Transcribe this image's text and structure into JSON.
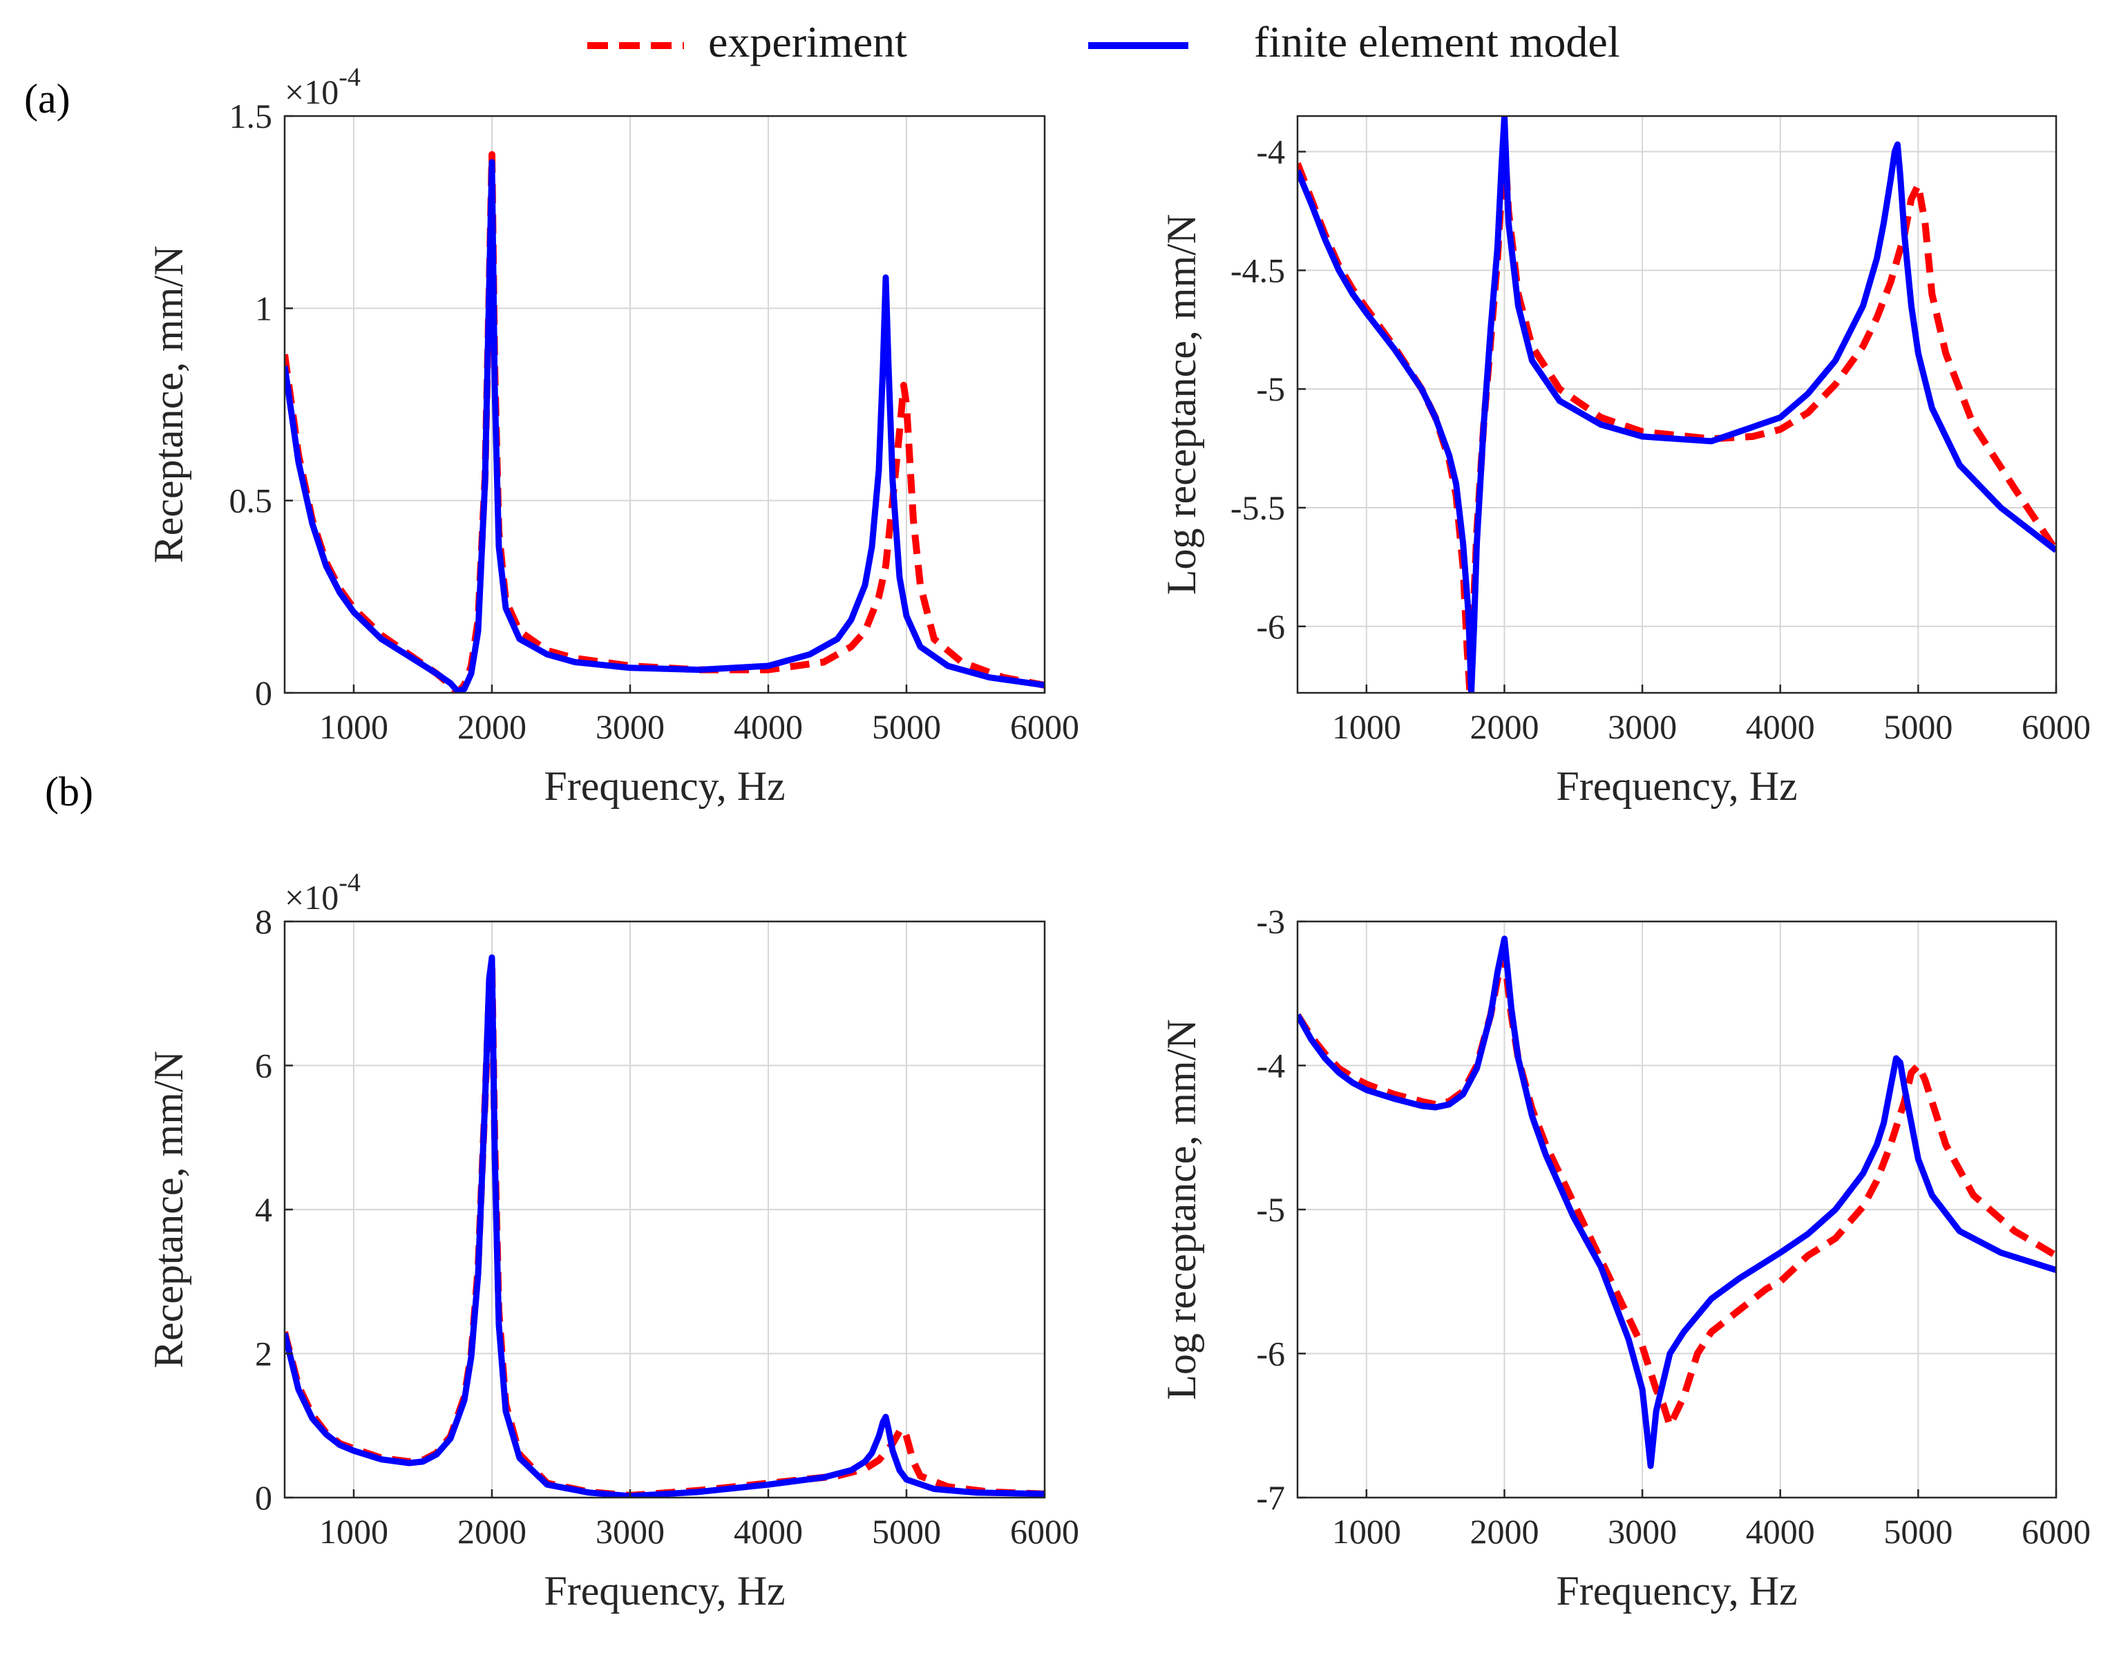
{
  "legend": {
    "items": [
      {
        "label": "experiment",
        "color": "#ff0000",
        "style": "dashed"
      },
      {
        "label": "finite element model",
        "color": "#0000ff",
        "style": "solid"
      }
    ],
    "placement": "top-center"
  },
  "panel_labels": [
    "(a)",
    "(b)"
  ],
  "chart_data": [
    {
      "id": "a_linear",
      "type": "line",
      "xlabel": "Frequency, Hz",
      "ylabel": "Receptance, mm/N",
      "multiplier": "×10",
      "multiplier_exp": "-4",
      "xlim": [
        500,
        6000
      ],
      "ylim": [
        0,
        1.5
      ],
      "xticks": [
        1000,
        2000,
        3000,
        4000,
        5000,
        6000
      ],
      "xticklabels": [
        "1000",
        "2000",
        "3000",
        "4000",
        "5000",
        "6000"
      ],
      "yticks": [
        0,
        0.5,
        1,
        1.5
      ],
      "yticklabels": [
        "0",
        "0.5",
        "1",
        "1.5"
      ],
      "grid": true,
      "series": [
        {
          "name": "experiment",
          "color": "#ff0000",
          "dashed": true,
          "x": [
            500,
            600,
            700,
            800,
            900,
            1000,
            1200,
            1400,
            1600,
            1700,
            1750,
            1800,
            1850,
            1900,
            1950,
            1980,
            2000,
            2020,
            2050,
            2100,
            2200,
            2400,
            2600,
            3000,
            3500,
            4000,
            4400,
            4600,
            4700,
            4800,
            4850,
            4900,
            4950,
            4980,
            5000,
            5050,
            5100,
            5200,
            5400,
            5700,
            6000
          ],
          "y": [
            0.88,
            0.62,
            0.45,
            0.34,
            0.27,
            0.22,
            0.15,
            0.1,
            0.05,
            0.02,
            0.0,
            0.02,
            0.07,
            0.19,
            0.56,
            1.05,
            1.4,
            0.85,
            0.42,
            0.24,
            0.16,
            0.11,
            0.09,
            0.07,
            0.06,
            0.06,
            0.08,
            0.12,
            0.16,
            0.25,
            0.33,
            0.5,
            0.68,
            0.8,
            0.75,
            0.45,
            0.28,
            0.14,
            0.08,
            0.04,
            0.02
          ]
        },
        {
          "name": "finite element model",
          "color": "#0000ff",
          "dashed": false,
          "x": [
            500,
            600,
            700,
            800,
            900,
            1000,
            1200,
            1400,
            1600,
            1700,
            1750,
            1800,
            1850,
            1900,
            1950,
            1980,
            2000,
            2020,
            2050,
            2100,
            2200,
            2400,
            2600,
            3000,
            3500,
            4000,
            4300,
            4500,
            4600,
            4700,
            4750,
            4800,
            4830,
            4850,
            4870,
            4900,
            4950,
            5000,
            5100,
            5300,
            5600,
            6000
          ],
          "y": [
            0.85,
            0.6,
            0.44,
            0.33,
            0.26,
            0.21,
            0.14,
            0.095,
            0.05,
            0.025,
            0.005,
            0.01,
            0.05,
            0.16,
            0.55,
            1.05,
            1.38,
            0.8,
            0.38,
            0.22,
            0.14,
            0.1,
            0.08,
            0.065,
            0.06,
            0.07,
            0.1,
            0.14,
            0.19,
            0.28,
            0.38,
            0.58,
            0.85,
            1.08,
            0.85,
            0.55,
            0.3,
            0.2,
            0.12,
            0.07,
            0.04,
            0.02
          ]
        }
      ]
    },
    {
      "id": "a_log",
      "type": "line",
      "xlabel": "Frequency, Hz",
      "ylabel": "Log receptance, mm/N",
      "xlim": [
        500,
        6000
      ],
      "ylim": [
        -6.28,
        -3.85
      ],
      "xticks": [
        1000,
        2000,
        3000,
        4000,
        5000,
        6000
      ],
      "xticklabels": [
        "1000",
        "2000",
        "3000",
        "4000",
        "5000",
        "6000"
      ],
      "yticks": [
        -6,
        -5.5,
        -5,
        -4.5,
        -4
      ],
      "yticklabels": [
        "-6",
        "-5.5",
        "-5",
        "-4.5",
        "-4"
      ],
      "grid": true,
      "series": [
        {
          "name": "experiment",
          "color": "#ff0000",
          "dashed": true,
          "x": [
            500,
            600,
            700,
            800,
            900,
            1000,
            1200,
            1400,
            1500,
            1600,
            1650,
            1700,
            1730,
            1750,
            1770,
            1800,
            1850,
            1900,
            1950,
            1980,
            2000,
            2030,
            2100,
            2200,
            2400,
            2700,
            3000,
            3500,
            3800,
            4000,
            4200,
            4400,
            4600,
            4700,
            4800,
            4900,
            4950,
            5000,
            5050,
            5100,
            5200,
            5400,
            5700,
            6000
          ],
          "y": [
            -4.05,
            -4.2,
            -4.35,
            -4.48,
            -4.58,
            -4.66,
            -4.82,
            -5.0,
            -5.12,
            -5.3,
            -5.45,
            -5.75,
            -6.1,
            -6.28,
            -6.0,
            -5.6,
            -5.15,
            -4.8,
            -4.45,
            -4.15,
            -3.95,
            -4.25,
            -4.6,
            -4.82,
            -5.0,
            -5.12,
            -5.18,
            -5.21,
            -5.2,
            -5.17,
            -5.1,
            -4.98,
            -4.82,
            -4.7,
            -4.55,
            -4.35,
            -4.2,
            -4.14,
            -4.3,
            -4.6,
            -4.85,
            -5.15,
            -5.42,
            -5.68
          ]
        },
        {
          "name": "finite element model",
          "color": "#0000ff",
          "dashed": false,
          "x": [
            500,
            600,
            700,
            800,
            900,
            1000,
            1200,
            1400,
            1500,
            1600,
            1650,
            1700,
            1740,
            1760,
            1780,
            1800,
            1850,
            1900,
            1950,
            1980,
            2000,
            2030,
            2100,
            2200,
            2400,
            2700,
            3000,
            3500,
            4000,
            4200,
            4400,
            4600,
            4700,
            4750,
            4800,
            4830,
            4850,
            4870,
            4900,
            4950,
            5000,
            5100,
            5300,
            5600,
            6000
          ],
          "y": [
            -4.08,
            -4.22,
            -4.37,
            -4.5,
            -4.6,
            -4.68,
            -4.83,
            -5.0,
            -5.12,
            -5.28,
            -5.4,
            -5.65,
            -5.95,
            -6.28,
            -6.0,
            -5.65,
            -5.15,
            -4.75,
            -4.4,
            -4.05,
            -3.85,
            -4.3,
            -4.65,
            -4.88,
            -5.05,
            -5.15,
            -5.2,
            -5.22,
            -5.12,
            -5.02,
            -4.88,
            -4.65,
            -4.45,
            -4.3,
            -4.12,
            -4.0,
            -3.97,
            -4.1,
            -4.35,
            -4.65,
            -4.85,
            -5.08,
            -5.32,
            -5.5,
            -5.68
          ]
        }
      ]
    },
    {
      "id": "b_linear",
      "type": "line",
      "xlabel": "Frequency, Hz",
      "ylabel": "Receptance, mm/N",
      "multiplier": "×10",
      "multiplier_exp": "-4",
      "xlim": [
        500,
        6000
      ],
      "ylim": [
        0,
        8
      ],
      "xticks": [
        1000,
        2000,
        3000,
        4000,
        5000,
        6000
      ],
      "xticklabels": [
        "1000",
        "2000",
        "3000",
        "4000",
        "5000",
        "6000"
      ],
      "yticks": [
        0,
        2,
        4,
        6,
        8
      ],
      "yticklabels": [
        "0",
        "2",
        "4",
        "6",
        "8"
      ],
      "grid": true,
      "series": [
        {
          "name": "experiment",
          "color": "#ff0000",
          "dashed": true,
          "x": [
            500,
            600,
            700,
            800,
            900,
            1000,
            1200,
            1400,
            1500,
            1600,
            1700,
            1800,
            1850,
            1900,
            1950,
            1980,
            2000,
            2020,
            2050,
            2100,
            2200,
            2400,
            2700,
            3000,
            3500,
            4000,
            4500,
            4700,
            4800,
            4900,
            4950,
            4980,
            5000,
            5050,
            5100,
            5300,
            5600,
            6000
          ],
          "y": [
            2.3,
            1.55,
            1.15,
            0.9,
            0.75,
            0.68,
            0.55,
            0.5,
            0.52,
            0.62,
            0.85,
            1.4,
            2.0,
            3.2,
            5.5,
            7.0,
            7.4,
            5.0,
            2.6,
            1.3,
            0.6,
            0.2,
            0.08,
            0.03,
            0.1,
            0.2,
            0.3,
            0.4,
            0.52,
            0.75,
            0.92,
            0.95,
            0.85,
            0.5,
            0.3,
            0.15,
            0.08,
            0.05
          ]
        },
        {
          "name": "finite element model",
          "color": "#0000ff",
          "dashed": false,
          "x": [
            500,
            600,
            700,
            800,
            900,
            1000,
            1200,
            1400,
            1500,
            1600,
            1700,
            1800,
            1850,
            1900,
            1950,
            1980,
            2000,
            2020,
            2050,
            2100,
            2200,
            2400,
            2700,
            3000,
            3500,
            4000,
            4400,
            4600,
            4700,
            4750,
            4800,
            4830,
            4850,
            4870,
            4900,
            4950,
            5000,
            5200,
            5500,
            6000
          ],
          "y": [
            2.28,
            1.5,
            1.1,
            0.88,
            0.73,
            0.65,
            0.53,
            0.48,
            0.5,
            0.6,
            0.82,
            1.35,
            1.95,
            3.1,
            5.5,
            7.2,
            7.5,
            4.8,
            2.4,
            1.2,
            0.55,
            0.18,
            0.07,
            0.02,
            0.08,
            0.18,
            0.28,
            0.38,
            0.5,
            0.62,
            0.85,
            1.05,
            1.12,
            0.95,
            0.65,
            0.38,
            0.25,
            0.12,
            0.07,
            0.05
          ]
        }
      ]
    },
    {
      "id": "b_log",
      "type": "line",
      "xlabel": "Frequency, Hz",
      "ylabel": "Log receptance, mm/N",
      "xlim": [
        500,
        6000
      ],
      "ylim": [
        -7,
        -3
      ],
      "xticks": [
        1000,
        2000,
        3000,
        4000,
        5000,
        6000
      ],
      "xticklabels": [
        "1000",
        "2000",
        "3000",
        "4000",
        "5000",
        "6000"
      ],
      "yticks": [
        -7,
        -6,
        -5,
        -4,
        -3
      ],
      "yticklabels": [
        "-7",
        "-6",
        "-5",
        "-4",
        "-3"
      ],
      "grid": true,
      "series": [
        {
          "name": "experiment",
          "color": "#ff0000",
          "dashed": true,
          "x": [
            500,
            600,
            700,
            800,
            900,
            1000,
            1200,
            1400,
            1500,
            1600,
            1700,
            1800,
            1900,
            1950,
            2000,
            2050,
            2100,
            2200,
            2300,
            2500,
            2700,
            2900,
            3000,
            3100,
            3150,
            3200,
            3300,
            3400,
            3500,
            3700,
            3900,
            4000,
            4200,
            4400,
            4600,
            4700,
            4800,
            4900,
            4950,
            5000,
            5050,
            5100,
            5200,
            5400,
            5700,
            6000
          ],
          "y": [
            -3.65,
            -3.8,
            -3.92,
            -4.02,
            -4.08,
            -4.13,
            -4.2,
            -4.25,
            -4.27,
            -4.25,
            -4.18,
            -4.0,
            -3.65,
            -3.4,
            -3.25,
            -3.65,
            -3.95,
            -4.3,
            -4.55,
            -4.95,
            -5.35,
            -5.75,
            -5.95,
            -6.25,
            -6.35,
            -6.5,
            -6.3,
            -6.0,
            -5.85,
            -5.7,
            -5.55,
            -5.5,
            -5.32,
            -5.2,
            -4.98,
            -4.8,
            -4.55,
            -4.25,
            -4.05,
            -4.0,
            -4.1,
            -4.25,
            -4.55,
            -4.9,
            -5.15,
            -5.32
          ]
        },
        {
          "name": "finite element model",
          "color": "#0000ff",
          "dashed": false,
          "x": [
            500,
            600,
            700,
            800,
            900,
            1000,
            1200,
            1400,
            1500,
            1600,
            1700,
            1800,
            1900,
            1950,
            2000,
            2050,
            2100,
            2200,
            2300,
            2500,
            2700,
            2900,
            3000,
            3040,
            3060,
            3100,
            3200,
            3300,
            3500,
            3700,
            4000,
            4200,
            4400,
            4600,
            4700,
            4750,
            4800,
            4840,
            4870,
            4900,
            4950,
            5000,
            5100,
            5300,
            5600,
            6000
          ],
          "y": [
            -3.65,
            -3.82,
            -3.95,
            -4.05,
            -4.12,
            -4.17,
            -4.23,
            -4.28,
            -4.29,
            -4.27,
            -4.2,
            -4.02,
            -3.65,
            -3.35,
            -3.12,
            -3.6,
            -3.95,
            -4.35,
            -4.62,
            -5.05,
            -5.4,
            -5.9,
            -6.25,
            -6.6,
            -6.78,
            -6.4,
            -6.0,
            -5.85,
            -5.62,
            -5.48,
            -5.3,
            -5.17,
            -5.0,
            -4.75,
            -4.55,
            -4.4,
            -4.15,
            -3.95,
            -3.98,
            -4.15,
            -4.4,
            -4.65,
            -4.9,
            -5.15,
            -5.3,
            -5.42
          ]
        }
      ]
    }
  ]
}
